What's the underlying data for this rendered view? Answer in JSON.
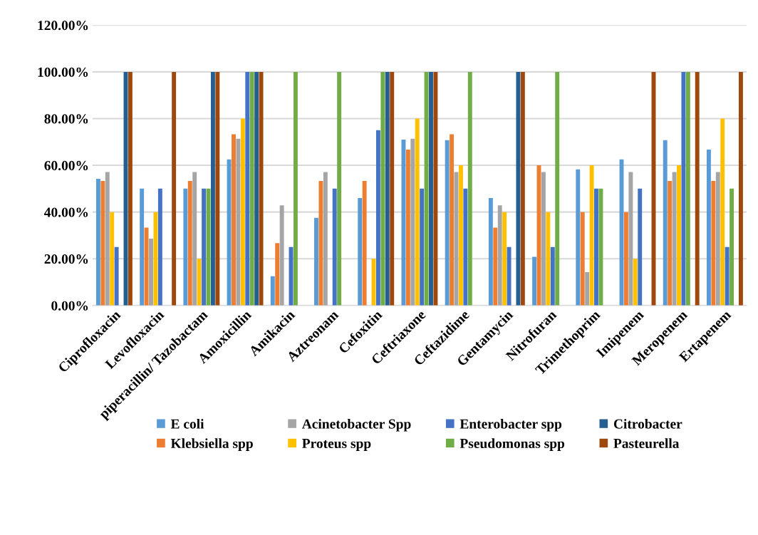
{
  "chart_data": {
    "type": "bar",
    "categories": [
      "Ciprofloxacin",
      "Levofloxacin",
      "piperacillin/ Tazobactam",
      "Amoxicillin",
      "Amikacin",
      "Aztreonam",
      "Cefoxitin",
      "Ceftriaxone",
      "Ceftazidime",
      "Gentamycin",
      "Nitrofuran",
      "Trimethoprim",
      "Imipenem",
      "Meropenem",
      "Ertapenem"
    ],
    "series": [
      {
        "name": "E coli",
        "color": "#5b9bd5",
        "values": [
          54.2,
          50,
          50,
          62.5,
          12.5,
          37.5,
          46,
          71,
          70.8,
          46,
          20.8,
          58.3,
          62.5,
          70.8,
          66.7
        ]
      },
      {
        "name": "Klebsiella spp",
        "color": "#ed7d31",
        "values": [
          53.3,
          33.3,
          53.3,
          73.3,
          26.7,
          53.3,
          53.3,
          66.7,
          73.3,
          33.3,
          60,
          40,
          40,
          53.3,
          53.3
        ]
      },
      {
        "name": "Acinetobacter Spp",
        "color": "#a5a5a5",
        "values": [
          57.1,
          28.6,
          57.1,
          71.4,
          42.9,
          57.1,
          0,
          71.4,
          57.1,
          42.9,
          57.1,
          14.3,
          57.1,
          57.1,
          57.1
        ]
      },
      {
        "name": "Proteus spp",
        "color": "#ffc000",
        "values": [
          40,
          40,
          20,
          80,
          0,
          0,
          20,
          80,
          60,
          40,
          40,
          60,
          20,
          60,
          80
        ]
      },
      {
        "name": "Enterobacter spp",
        "color": "#4472c4",
        "values": [
          25,
          50,
          50,
          100,
          25,
          50,
          75,
          50,
          50,
          25,
          25,
          50,
          50,
          100,
          25
        ]
      },
      {
        "name": "Pseudomonas spp",
        "color": "#70ad47",
        "values": [
          0,
          0,
          50,
          100,
          100,
          100,
          100,
          100,
          100,
          0,
          100,
          50,
          0,
          100,
          50
        ]
      },
      {
        "name": "Citrobacter",
        "color": "#255e91",
        "values": [
          100,
          0,
          100,
          100,
          0,
          0,
          100,
          100,
          0,
          100,
          0,
          0,
          0,
          0,
          0
        ]
      },
      {
        "name": "Pasteurella",
        "color": "#9e480e",
        "values": [
          100,
          100,
          100,
          100,
          0,
          0,
          100,
          100,
          0,
          100,
          0,
          0,
          100,
          100,
          100
        ]
      }
    ],
    "ylim": [
      0,
      120
    ],
    "yticks": [
      {
        "value": 0,
        "label": "0.00%"
      },
      {
        "value": 20,
        "label": "20.00%"
      },
      {
        "value": 40,
        "label": "40.00%"
      },
      {
        "value": 60,
        "label": "60.00%"
      },
      {
        "value": 80,
        "label": "80.00%"
      },
      {
        "value": 100,
        "label": "100.00%"
      },
      {
        "value": 120,
        "label": "120.00%"
      }
    ],
    "grid": "y",
    "legend": "bottom"
  }
}
